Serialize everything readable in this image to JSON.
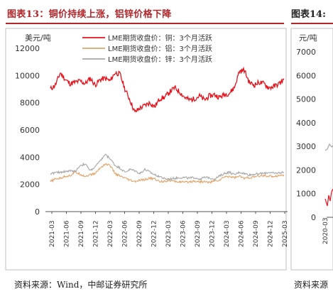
{
  "left_panel": {
    "title": "图表13：铜价持续上涨，铝锌价格下降",
    "source": "资料来源：Wind，中邮证券研究所"
  },
  "right_panel": {
    "title": "图表14:",
    "source": "资料来源",
    "y_unit": "元/吨",
    "y_ticks": [
      "7000",
      "6000",
      "5000",
      "4000",
      "3000",
      "2000",
      "1000",
      "0"
    ],
    "x_tick": "2020-03"
  },
  "chart_data": {
    "type": "line",
    "y_unit": "美元/吨",
    "ylim": [
      0,
      12000
    ],
    "y_ticks": [
      0,
      2000,
      4000,
      6000,
      8000,
      10000,
      12000
    ],
    "x_tick_labels": [
      "2021-03",
      "2021-06",
      "2021-09",
      "2021-12",
      "2022-03",
      "2022-06",
      "2022-09",
      "2022-12",
      "2023-03",
      "2023-06",
      "2023-09",
      "2023-12",
      "2024-03",
      "2024-06",
      "2024-09",
      "2024-12",
      "2025-03"
    ],
    "legend_position": "top-right",
    "series": [
      {
        "name": "LME期货收盘价：铜：3个月活跃",
        "color": "#e3141e",
        "values": [
          9000,
          9300,
          10200,
          9700,
          9400,
          9500,
          9600,
          9400,
          9800,
          9300,
          9700,
          9800,
          9600,
          10200,
          10100,
          9000,
          8200,
          7300,
          7600,
          7800,
          8000,
          7700,
          8300,
          8400,
          8800,
          9100,
          8800,
          8400,
          8200,
          8300,
          8500,
          8200,
          8500,
          8600,
          8400,
          8600,
          8700,
          9100,
          10300,
          10400,
          9500,
          9300,
          9500,
          9400,
          9100,
          9200,
          9400,
          9700
        ]
      },
      {
        "name": "LME期货收盘价：铝：3个月活跃",
        "color": "#e0a46a",
        "values": [
          2200,
          2400,
          2450,
          2600,
          2650,
          2900,
          2750,
          2600,
          2700,
          2800,
          3200,
          3500,
          3400,
          2800,
          2600,
          2450,
          2300,
          2200,
          2300,
          2350,
          2450,
          2400,
          2200,
          2250,
          2300,
          2200,
          2200,
          2150,
          2200,
          2250,
          2200,
          2200,
          2150,
          2250,
          2300,
          2550,
          2600,
          2500,
          2600,
          2450,
          2500,
          2550,
          2600,
          2650,
          2600,
          2600,
          2650,
          2700
        ]
      },
      {
        "name": "LME期货收盘价：锌：3个月活跃",
        "color": "#a6a6a6",
        "values": [
          2800,
          2850,
          2900,
          2950,
          3000,
          2950,
          3400,
          3500,
          3000,
          3300,
          3700,
          4200,
          3900,
          3400,
          3200,
          2900,
          3100,
          3000,
          2800,
          3100,
          2900,
          2700,
          2600,
          2400,
          2400,
          2450,
          2500,
          2500,
          2450,
          2500,
          2400,
          2500,
          2500,
          2400,
          2600,
          2800,
          2900,
          2700,
          2900,
          2800,
          2700,
          2750,
          2800,
          2800,
          2900,
          2800,
          2850,
          2900
        ]
      }
    ]
  }
}
